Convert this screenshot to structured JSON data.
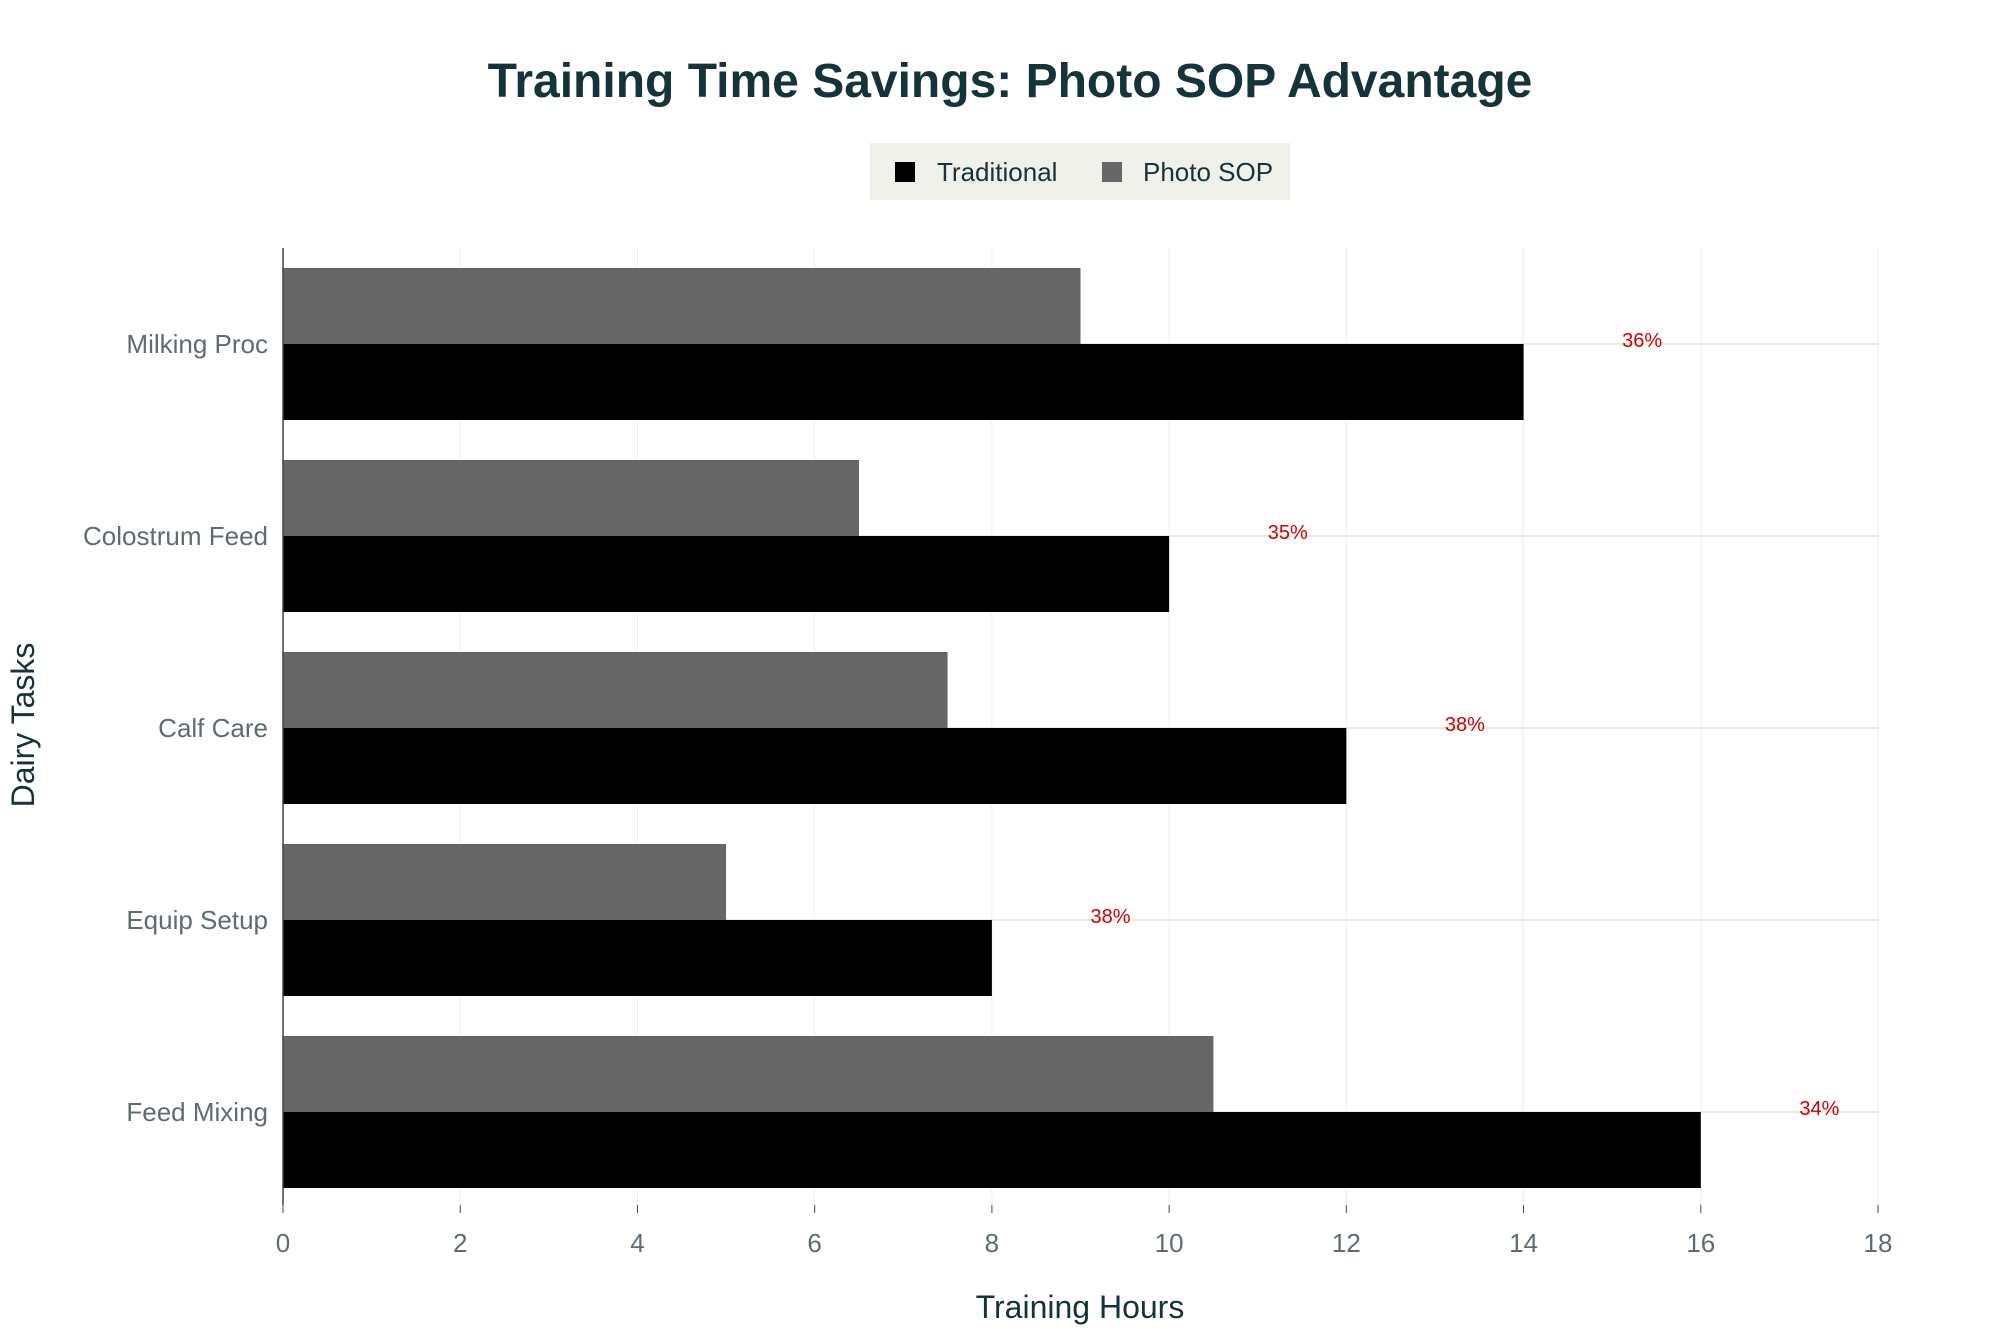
{
  "chart_data": {
    "type": "bar",
    "orientation": "horizontal",
    "title": "Training Time Savings: Photo SOP Advantage",
    "xlabel": "Training Hours",
    "ylabel": "Dairy Tasks",
    "xlim": [
      0,
      18
    ],
    "x_ticks": [
      0,
      2,
      4,
      6,
      8,
      10,
      12,
      14,
      16,
      18
    ],
    "categories": [
      "Milking Proc",
      "Colostrum Feed",
      "Calf Care",
      "Equip Setup",
      "Feed Mixing"
    ],
    "series": [
      {
        "name": "Traditional",
        "color": "#000000",
        "values": [
          14,
          10,
          12,
          8,
          16
        ]
      },
      {
        "name": "Photo SOP",
        "color": "#666666",
        "values": [
          9,
          6.5,
          7.5,
          5,
          10.5
        ]
      }
    ],
    "annotations": [
      {
        "category": "Milking Proc",
        "text": "36%",
        "x": 15
      },
      {
        "category": "Colostrum Feed",
        "text": "35%",
        "x": 11
      },
      {
        "category": "Calf Care",
        "text": "38%",
        "x": 13
      },
      {
        "category": "Equip Setup",
        "text": "38%",
        "x": 9
      },
      {
        "category": "Feed Mixing",
        "text": "34%",
        "x": 17
      }
    ],
    "annotation_color": "#cc0000",
    "legend_position": "top-center",
    "grid": true
  }
}
